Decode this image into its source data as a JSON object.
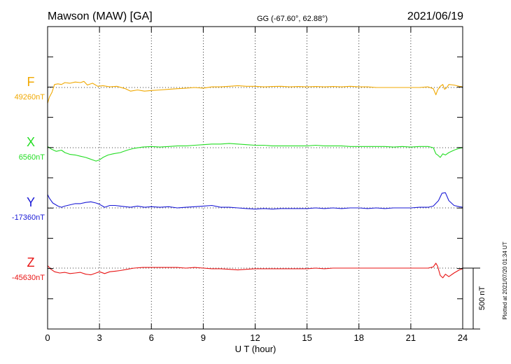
{
  "header": {
    "station": "Mawson (MAW)  [GA]",
    "coords": "GG (-67.60°,  62.88°)",
    "date": "2021/06/19"
  },
  "footer": {
    "plotted": "Plotted at 2021/07/20 01:34 UT"
  },
  "chart_data": {
    "type": "line",
    "xlabel": "U T (hour)",
    "xlim": [
      0,
      24
    ],
    "xticks": [
      0,
      3,
      6,
      9,
      12,
      15,
      18,
      21,
      24
    ],
    "x_tick_labels": [
      "0",
      "3",
      "6",
      "9",
      "12",
      "15",
      "18",
      "21",
      "24"
    ],
    "y_units": "nT",
    "grid": "dotted vertical lines every 3 hours; dotted baseline per component",
    "scale_bar": {
      "label": "500 nT",
      "value_nT": 500
    },
    "series": [
      {
        "name": "F",
        "baseline_label": "49260nT",
        "baseline_nT": 49260,
        "color": "#f0a800",
        "points": [
          [
            0,
            -130
          ],
          [
            0.1,
            -80
          ],
          [
            0.25,
            -40
          ],
          [
            0.4,
            25
          ],
          [
            0.6,
            30
          ],
          [
            0.8,
            25
          ],
          [
            1.0,
            40
          ],
          [
            1.3,
            35
          ],
          [
            1.6,
            45
          ],
          [
            1.9,
            40
          ],
          [
            2.1,
            50
          ],
          [
            2.3,
            20
          ],
          [
            2.6,
            35
          ],
          [
            2.9,
            10
          ],
          [
            3.2,
            15
          ],
          [
            3.6,
            5
          ],
          [
            4.0,
            10
          ],
          [
            4.5,
            -10
          ],
          [
            4.8,
            -30
          ],
          [
            5.2,
            -20
          ],
          [
            5.6,
            -30
          ],
          [
            6.0,
            -25
          ],
          [
            6.5,
            -20
          ],
          [
            7.0,
            -15
          ],
          [
            7.5,
            -10
          ],
          [
            8.0,
            -5
          ],
          [
            8.5,
            0
          ],
          [
            9.0,
            -5
          ],
          [
            9.5,
            5
          ],
          [
            10.0,
            5
          ],
          [
            10.5,
            10
          ],
          [
            11.0,
            15
          ],
          [
            11.5,
            10
          ],
          [
            12.0,
            10
          ],
          [
            12.5,
            5
          ],
          [
            13.0,
            8
          ],
          [
            13.5,
            10
          ],
          [
            14.0,
            5
          ],
          [
            14.5,
            8
          ],
          [
            15.0,
            5
          ],
          [
            15.5,
            8
          ],
          [
            16.0,
            5
          ],
          [
            16.5,
            8
          ],
          [
            17.0,
            5
          ],
          [
            17.5,
            10
          ],
          [
            18.0,
            5
          ],
          [
            18.5,
            5
          ],
          [
            19.0,
            0
          ],
          [
            19.5,
            0
          ],
          [
            20.0,
            0
          ],
          [
            20.5,
            0
          ],
          [
            21.0,
            0
          ],
          [
            21.5,
            0
          ],
          [
            22.0,
            5
          ],
          [
            22.3,
            -10
          ],
          [
            22.45,
            -60
          ],
          [
            22.55,
            -20
          ],
          [
            22.7,
            10
          ],
          [
            22.85,
            25
          ],
          [
            22.95,
            -15
          ],
          [
            23.05,
            -5
          ],
          [
            23.2,
            25
          ],
          [
            23.5,
            20
          ],
          [
            23.8,
            10
          ],
          [
            24.0,
            5
          ]
        ]
      },
      {
        "name": "X",
        "baseline_label": "6560nT",
        "baseline_nT": 6560,
        "color": "#22dd22",
        "points": [
          [
            0,
            10
          ],
          [
            0.2,
            -10
          ],
          [
            0.5,
            -30
          ],
          [
            0.8,
            -20
          ],
          [
            1.0,
            -40
          ],
          [
            1.3,
            -55
          ],
          [
            1.6,
            -60
          ],
          [
            1.9,
            -70
          ],
          [
            2.2,
            -80
          ],
          [
            2.5,
            -95
          ],
          [
            2.8,
            -110
          ],
          [
            3.0,
            -100
          ],
          [
            3.2,
            -80
          ],
          [
            3.5,
            -60
          ],
          [
            3.8,
            -50
          ],
          [
            4.2,
            -40
          ],
          [
            4.6,
            -20
          ],
          [
            5.0,
            -5
          ],
          [
            5.5,
            5
          ],
          [
            6.0,
            10
          ],
          [
            6.5,
            5
          ],
          [
            7.0,
            10
          ],
          [
            7.5,
            15
          ],
          [
            8.0,
            15
          ],
          [
            8.5,
            20
          ],
          [
            9.0,
            25
          ],
          [
            9.5,
            30
          ],
          [
            10.0,
            30
          ],
          [
            10.5,
            35
          ],
          [
            11.0,
            30
          ],
          [
            11.5,
            25
          ],
          [
            12.0,
            20
          ],
          [
            12.5,
            20
          ],
          [
            13.0,
            15
          ],
          [
            13.5,
            15
          ],
          [
            14.0,
            15
          ],
          [
            14.5,
            15
          ],
          [
            15.0,
            15
          ],
          [
            15.5,
            20
          ],
          [
            16.0,
            15
          ],
          [
            16.5,
            15
          ],
          [
            17.0,
            15
          ],
          [
            17.5,
            10
          ],
          [
            18.0,
            10
          ],
          [
            18.5,
            10
          ],
          [
            19.0,
            10
          ],
          [
            19.5,
            10
          ],
          [
            20.0,
            5
          ],
          [
            20.5,
            10
          ],
          [
            21.0,
            5
          ],
          [
            21.5,
            10
          ],
          [
            22.0,
            10
          ],
          [
            22.3,
            0
          ],
          [
            22.45,
            -50
          ],
          [
            22.55,
            -60
          ],
          [
            22.7,
            -80
          ],
          [
            22.85,
            -50
          ],
          [
            23.0,
            -60
          ],
          [
            23.2,
            -40
          ],
          [
            23.5,
            -20
          ],
          [
            23.8,
            -5
          ],
          [
            24.0,
            0
          ]
        ]
      },
      {
        "name": "Y",
        "baseline_label": "-17360nT",
        "baseline_nT": -17360,
        "color": "#1a1ad6",
        "points": [
          [
            0,
            110
          ],
          [
            0.1,
            80
          ],
          [
            0.3,
            40
          ],
          [
            0.6,
            15
          ],
          [
            0.8,
            5
          ],
          [
            1.0,
            15
          ],
          [
            1.3,
            25
          ],
          [
            1.6,
            35
          ],
          [
            1.9,
            35
          ],
          [
            2.2,
            45
          ],
          [
            2.5,
            50
          ],
          [
            2.8,
            40
          ],
          [
            3.0,
            30
          ],
          [
            3.3,
            5
          ],
          [
            3.6,
            20
          ],
          [
            3.9,
            20
          ],
          [
            4.2,
            15
          ],
          [
            4.5,
            10
          ],
          [
            4.8,
            5
          ],
          [
            5.2,
            15
          ],
          [
            5.6,
            5
          ],
          [
            6.0,
            10
          ],
          [
            6.5,
            5
          ],
          [
            7.0,
            10
          ],
          [
            7.5,
            0
          ],
          [
            8.0,
            5
          ],
          [
            8.5,
            10
          ],
          [
            9.0,
            15
          ],
          [
            9.5,
            20
          ],
          [
            10.0,
            5
          ],
          [
            10.5,
            5
          ],
          [
            11.0,
            0
          ],
          [
            11.5,
            -5
          ],
          [
            12.0,
            -10
          ],
          [
            12.5,
            -5
          ],
          [
            13.0,
            -10
          ],
          [
            13.5,
            -5
          ],
          [
            14.0,
            -5
          ],
          [
            14.5,
            -5
          ],
          [
            15.0,
            -5
          ],
          [
            15.5,
            0
          ],
          [
            16.0,
            -5
          ],
          [
            16.5,
            0
          ],
          [
            17.0,
            -5
          ],
          [
            17.5,
            0
          ],
          [
            18.0,
            0
          ],
          [
            18.5,
            -5
          ],
          [
            19.0,
            0
          ],
          [
            19.5,
            -5
          ],
          [
            20.0,
            0
          ],
          [
            20.5,
            0
          ],
          [
            21.0,
            0
          ],
          [
            21.5,
            5
          ],
          [
            22.0,
            5
          ],
          [
            22.3,
            15
          ],
          [
            22.6,
            60
          ],
          [
            22.8,
            120
          ],
          [
            23.0,
            125
          ],
          [
            23.2,
            60
          ],
          [
            23.5,
            20
          ],
          [
            23.8,
            10
          ],
          [
            24.0,
            5
          ]
        ]
      },
      {
        "name": "Z",
        "baseline_label": "-45630nT",
        "baseline_nT": -45630,
        "color": "#e81414",
        "points": [
          [
            0,
            20
          ],
          [
            0.2,
            -10
          ],
          [
            0.4,
            -30
          ],
          [
            0.7,
            -40
          ],
          [
            1.0,
            -35
          ],
          [
            1.3,
            -45
          ],
          [
            1.6,
            -40
          ],
          [
            1.9,
            -35
          ],
          [
            2.2,
            -50
          ],
          [
            2.5,
            -55
          ],
          [
            2.8,
            -40
          ],
          [
            3.0,
            -30
          ],
          [
            3.3,
            -45
          ],
          [
            3.6,
            -30
          ],
          [
            3.9,
            -25
          ],
          [
            4.2,
            -20
          ],
          [
            4.6,
            -10
          ],
          [
            5.0,
            0
          ],
          [
            5.5,
            5
          ],
          [
            6.0,
            5
          ],
          [
            6.5,
            5
          ],
          [
            7.0,
            5
          ],
          [
            7.5,
            5
          ],
          [
            8.0,
            0
          ],
          [
            8.5,
            5
          ],
          [
            9.0,
            0
          ],
          [
            9.5,
            -5
          ],
          [
            10.0,
            -5
          ],
          [
            10.5,
            -10
          ],
          [
            11.0,
            -15
          ],
          [
            11.5,
            -10
          ],
          [
            12.0,
            -5
          ],
          [
            12.5,
            -5
          ],
          [
            13.0,
            -5
          ],
          [
            13.5,
            -5
          ],
          [
            14.0,
            -5
          ],
          [
            14.5,
            -5
          ],
          [
            15.0,
            -5
          ],
          [
            15.5,
            0
          ],
          [
            16.0,
            -5
          ],
          [
            16.5,
            0
          ],
          [
            17.0,
            0
          ],
          [
            17.5,
            0
          ],
          [
            18.0,
            0
          ],
          [
            18.5,
            0
          ],
          [
            19.0,
            0
          ],
          [
            19.5,
            0
          ],
          [
            20.0,
            0
          ],
          [
            20.5,
            0
          ],
          [
            21.0,
            0
          ],
          [
            21.5,
            0
          ],
          [
            22.0,
            0
          ],
          [
            22.3,
            10
          ],
          [
            22.45,
            40
          ],
          [
            22.55,
            15
          ],
          [
            22.7,
            -60
          ],
          [
            22.85,
            -80
          ],
          [
            23.0,
            -50
          ],
          [
            23.2,
            -70
          ],
          [
            23.5,
            -40
          ],
          [
            23.8,
            -15
          ],
          [
            24.0,
            -5
          ]
        ]
      }
    ]
  }
}
